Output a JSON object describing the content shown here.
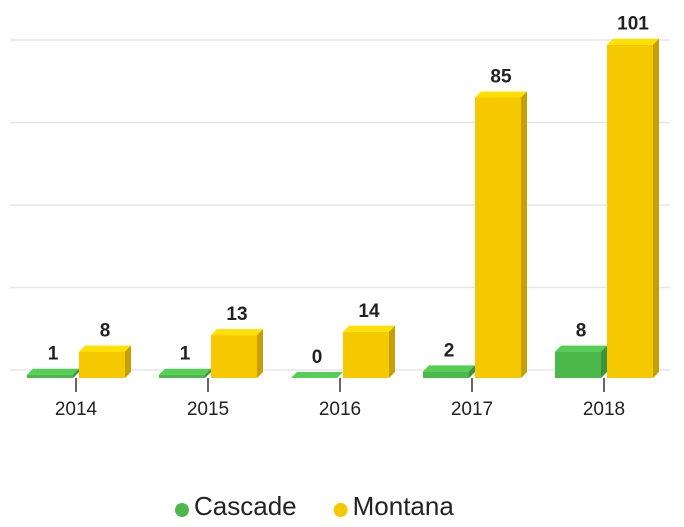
{
  "chart_data": {
    "type": "bar3d",
    "categories": [
      "2014",
      "2015",
      "2016",
      "2017",
      "2018"
    ],
    "series": [
      {
        "name": "Cascade",
        "color": "#4cb84c",
        "values": [
          1,
          1,
          0,
          2,
          8
        ]
      },
      {
        "name": "Montana",
        "color": "#f5c800",
        "values": [
          8,
          13,
          14,
          85,
          101
        ]
      }
    ],
    "ylim": [
      0,
      110
    ],
    "yticks": [
      0,
      25,
      50,
      75,
      100
    ],
    "grid": true,
    "show_tick_labels": false,
    "legend": "bottom"
  }
}
